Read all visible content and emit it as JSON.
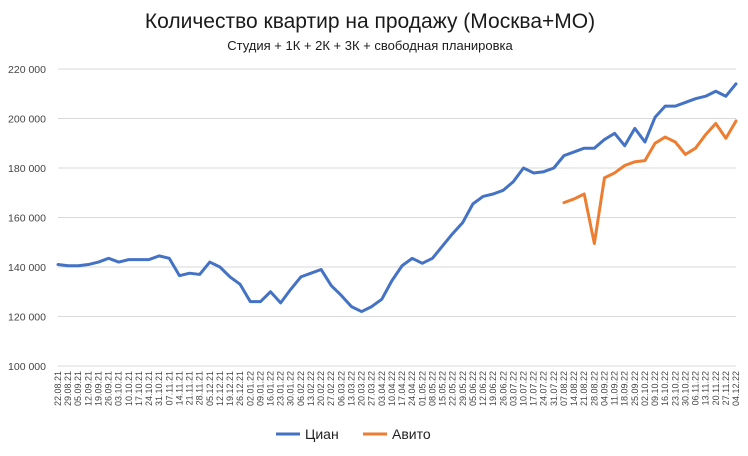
{
  "chart_data": {
    "type": "line",
    "title": "Количество квартир на продажу (Москва+МО)",
    "subtitle": "Студия + 1К + 2К + 3К + свободная планировка",
    "xlabel": "",
    "ylabel": "",
    "ylim": [
      100000,
      220000
    ],
    "yticks": [
      100000,
      120000,
      140000,
      160000,
      180000,
      200000,
      220000
    ],
    "ytick_labels": [
      "100 000",
      "120 000",
      "140 000",
      "160 000",
      "180 000",
      "200 000",
      "220 000"
    ],
    "grid": true,
    "legend_position": "bottom",
    "categories": [
      "22.08.21",
      "29.08.21",
      "05.09.21",
      "12.09.21",
      "19.09.21",
      "26.09.21",
      "03.10.21",
      "10.10.21",
      "17.10.21",
      "24.10.21",
      "31.10.21",
      "07.11.21",
      "14.11.21",
      "21.11.21",
      "28.11.21",
      "05.12.21",
      "12.12.21",
      "19.12.21",
      "26.12.21",
      "02.01.22",
      "09.01.22",
      "16.01.22",
      "23.01.22",
      "30.01.22",
      "06.02.22",
      "13.02.22",
      "20.02.22",
      "27.02.22",
      "06.03.22",
      "13.03.22",
      "20.03.22",
      "27.03.22",
      "03.04.22",
      "10.04.22",
      "17.04.22",
      "24.04.22",
      "01.05.22",
      "08.05.22",
      "15.05.22",
      "22.05.22",
      "29.05.22",
      "05.06.22",
      "12.06.22",
      "19.06.22",
      "26.06.22",
      "03.07.22",
      "10.07.22",
      "17.07.22",
      "24.07.22",
      "31.07.22",
      "07.08.22",
      "14.08.22",
      "21.08.22",
      "28.08.22",
      "04.09.22",
      "11.09.22",
      "18.09.22",
      "25.09.22",
      "02.10.22",
      "09.10.22",
      "16.10.22",
      "23.10.22",
      "30.10.22",
      "06.11.22",
      "13.11.22",
      "20.11.22",
      "27.11.22",
      "04.12.22"
    ],
    "series": [
      {
        "name": "Циан",
        "color": "#4472C4",
        "values": [
          141000,
          140500,
          140500,
          141000,
          142000,
          143500,
          142000,
          143000,
          143000,
          143000,
          144500,
          143500,
          136500,
          137500,
          137000,
          142000,
          140000,
          136000,
          133000,
          126000,
          126000,
          130000,
          125500,
          131000,
          136000,
          137500,
          139000,
          132500,
          128500,
          124000,
          122000,
          124000,
          127000,
          134500,
          140500,
          143500,
          141500,
          143500,
          148500,
          153500,
          158000,
          165500,
          168500,
          169500,
          171000,
          174500,
          180000,
          178000,
          178500,
          180000,
          185000,
          186500,
          188000,
          188000,
          191500,
          194000,
          189000,
          196000,
          190500,
          200500,
          205000,
          205000,
          206500,
          208000,
          209000,
          211000,
          209000,
          214000
        ]
      },
      {
        "name": "Авито",
        "color": "#ED7D31",
        "values": [
          null,
          null,
          null,
          null,
          null,
          null,
          null,
          null,
          null,
          null,
          null,
          null,
          null,
          null,
          null,
          null,
          null,
          null,
          null,
          null,
          null,
          null,
          null,
          null,
          null,
          null,
          null,
          null,
          null,
          null,
          null,
          null,
          null,
          null,
          null,
          null,
          null,
          null,
          null,
          null,
          null,
          null,
          null,
          null,
          null,
          null,
          null,
          null,
          null,
          null,
          166000,
          167500,
          169500,
          149500,
          176000,
          178000,
          181000,
          182500,
          183000,
          190000,
          192500,
          190500,
          185500,
          188000,
          193500,
          198000,
          192000,
          199000
        ]
      }
    ]
  }
}
